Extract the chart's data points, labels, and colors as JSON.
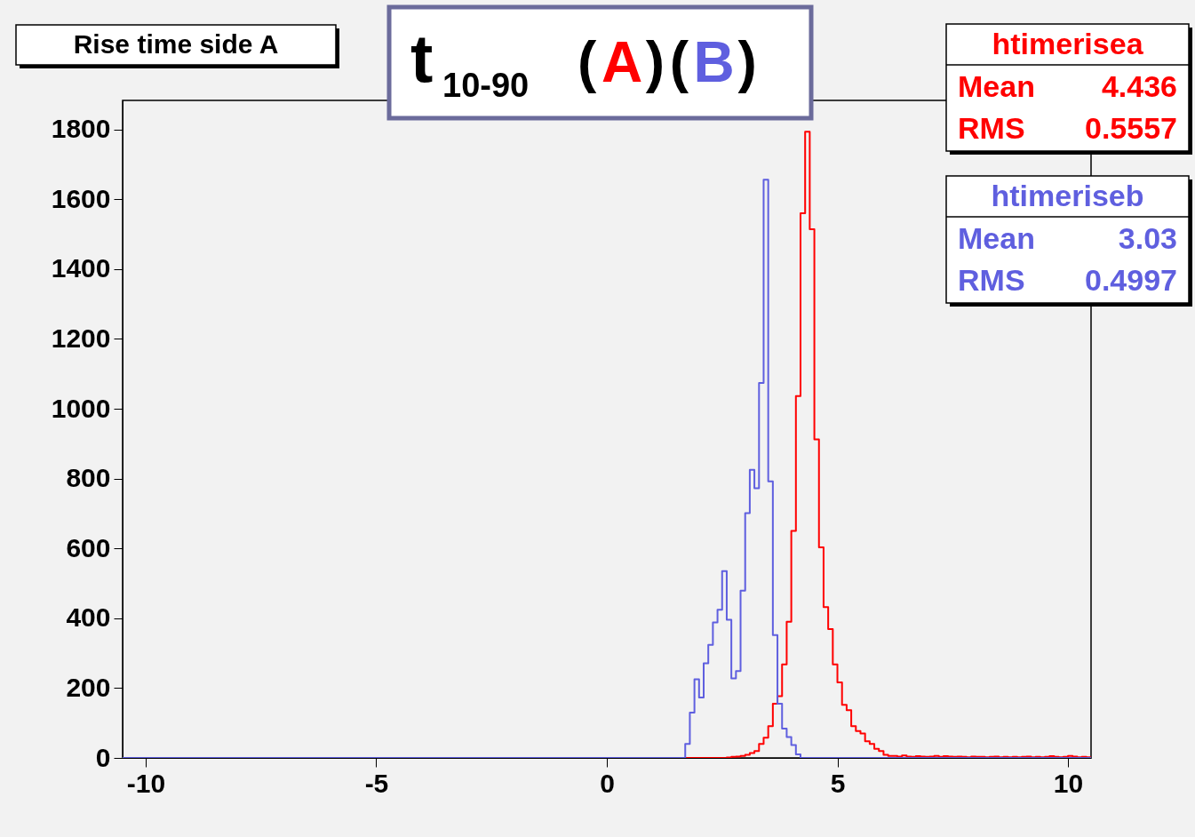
{
  "chart_data": {
    "type": "histogram",
    "title": "Rise time side A",
    "annotations": [
      "t$_{10-90}$ (A)(B)",
      "Mean 4.436",
      "RMS 0.5557",
      "Mean 3.03",
      "RMS 0.4997"
    ],
    "bins": [
      -10.5,
      -10.4,
      -10.3,
      -10.2,
      -10.1,
      -10,
      -9.9,
      -9.8,
      -9.7,
      -9.6,
      -9.5,
      -9.4,
      -9.3,
      -9.2,
      -9.1,
      -9,
      -8.9,
      -8.8,
      -8.7,
      -8.6,
      -8.5,
      -8.4,
      -8.3,
      -8.2,
      -8.1,
      -8,
      -7.9,
      -7.8,
      -7.7,
      -7.6,
      -7.5,
      -7.4,
      -7.3,
      -7.2,
      -7.1,
      -7,
      -6.9,
      -6.8,
      -6.7,
      -6.6,
      -6.5,
      -6.4,
      -6.3,
      -6.2,
      -6.1,
      -6,
      -5.9,
      -5.8,
      -5.7,
      -5.6,
      -5.5,
      -5.4,
      -5.3,
      -5.2,
      -5.1,
      -5,
      -4.9,
      -4.8,
      -4.7,
      -4.6,
      -4.5,
      -4.4,
      -4.3,
      -4.2,
      -4.1,
      -4,
      -3.9,
      -3.8,
      -3.7,
      -3.6,
      -3.5,
      -3.4,
      -3.3,
      -3.2,
      -3.1,
      -3,
      -2.9,
      -2.8,
      -2.7,
      -2.6,
      -2.5,
      -2.4,
      -2.3,
      -2.2,
      -2.1,
      -2,
      -1.9,
      -1.8,
      -1.7,
      -1.6,
      -1.5,
      -1.4,
      -1.3,
      -1.2,
      -1.1,
      -1,
      -0.9,
      -0.8,
      -0.7,
      -0.6,
      -0.5,
      -0.4,
      -0.3,
      -0.2,
      -0.1,
      0,
      0.1,
      0.2,
      0.3,
      0.4,
      0.5,
      0.6,
      0.7,
      0.8,
      0.9,
      1,
      1.1,
      1.2,
      1.3,
      1.4,
      1.5,
      1.6,
      1.7,
      1.8,
      1.9,
      2,
      2.1,
      2.2,
      2.3,
      2.4,
      2.5,
      2.6,
      2.7,
      2.8,
      2.9,
      3,
      3.1,
      3.2,
      3.3,
      3.4,
      3.5,
      3.6,
      3.7,
      3.8,
      3.9,
      4,
      4.1,
      4.2,
      4.3,
      4.4,
      4.5,
      4.6,
      4.7,
      4.8,
      4.9,
      5,
      5.1,
      5.2,
      5.3,
      5.4,
      5.5,
      5.6,
      5.7,
      5.8,
      5.9,
      6,
      6.1,
      6.2,
      6.3,
      6.4,
      6.5,
      6.6,
      6.7,
      6.8,
      6.9,
      7,
      7.1,
      7.2,
      7.3,
      7.4,
      7.5,
      7.6,
      7.7,
      7.8,
      7.9,
      8,
      8.1,
      8.2,
      8.3,
      8.4,
      8.5,
      8.6,
      8.7,
      8.8,
      8.9,
      9,
      9.1,
      9.2,
      9.3,
      9.4,
      9.5,
      9.6,
      9.7,
      9.8,
      9.9,
      10,
      10.1,
      10.2,
      10.3,
      10.4,
      10.5
    ],
    "series": [
      {
        "name": "htimerisea",
        "color": "#ff0000",
        "values": [
          0,
          0,
          0,
          0,
          0,
          0,
          0,
          0,
          0,
          0,
          0,
          0,
          0,
          0,
          0,
          0,
          0,
          0,
          0,
          0,
          0,
          0,
          0,
          0,
          0,
          0,
          0,
          0,
          0,
          0,
          0,
          0,
          0,
          0,
          0,
          0,
          0,
          0,
          0,
          0,
          0,
          0,
          0,
          0,
          0,
          0,
          0,
          0,
          0,
          0,
          0,
          0,
          0,
          0,
          0,
          0,
          0,
          0,
          0,
          0,
          0,
          0,
          0,
          0,
          0,
          0,
          0,
          0,
          0,
          0,
          0,
          0,
          0,
          0,
          0,
          0,
          0,
          0,
          0,
          0,
          0,
          0,
          0,
          0,
          0,
          0,
          0,
          0,
          0,
          0,
          0,
          0,
          0,
          0,
          0,
          0,
          0,
          0,
          0,
          0,
          0,
          0,
          0,
          0,
          0,
          0,
          0,
          0,
          0,
          0,
          0,
          0,
          0,
          0,
          0,
          0,
          0,
          0,
          0,
          0,
          0,
          0,
          0,
          0,
          0,
          0,
          0,
          0,
          0,
          0,
          0,
          1,
          3,
          4,
          6,
          9,
          14,
          20,
          40,
          58,
          91,
          155,
          177,
          268,
          390,
          650,
          1036,
          1560,
          1793,
          1514,
          912,
          603,
          432,
          369,
          268,
          216,
          152,
          137,
          91,
          77,
          70,
          48,
          40,
          26,
          20,
          9,
          6,
          6,
          4,
          7,
          4,
          3,
          5,
          4,
          3,
          4,
          6,
          3,
          5,
          4,
          3,
          4,
          3,
          2,
          4,
          3,
          3,
          2,
          3,
          4,
          2,
          3,
          2,
          3,
          2,
          3,
          4,
          2,
          3,
          2,
          3,
          5,
          3,
          2,
          3,
          6,
          4,
          2,
          3,
          2
        ]
      },
      {
        "name": "htimeriseb",
        "color": "#5f5fdf",
        "values": [
          0,
          0,
          0,
          0,
          0,
          0,
          0,
          0,
          0,
          0,
          0,
          0,
          0,
          0,
          0,
          0,
          0,
          0,
          0,
          0,
          0,
          0,
          0,
          0,
          0,
          0,
          0,
          0,
          0,
          0,
          0,
          0,
          0,
          0,
          0,
          0,
          0,
          0,
          0,
          0,
          0,
          0,
          0,
          0,
          0,
          0,
          0,
          0,
          0,
          0,
          0,
          0,
          0,
          0,
          0,
          0,
          0,
          0,
          0,
          0,
          0,
          0,
          0,
          0,
          0,
          0,
          0,
          0,
          0,
          0,
          0,
          0,
          0,
          0,
          0,
          0,
          0,
          0,
          0,
          0,
          0,
          0,
          0,
          0,
          0,
          0,
          0,
          0,
          0,
          0,
          0,
          0,
          0,
          0,
          0,
          0,
          0,
          0,
          0,
          0,
          0,
          0,
          0,
          0,
          0,
          0,
          0,
          0,
          0,
          0,
          0,
          0,
          0,
          0,
          0,
          0,
          0,
          0,
          0,
          0,
          0,
          0,
          40,
          130,
          225,
          173,
          271,
          324,
          388,
          424,
          535,
          396,
          228,
          249,
          479,
          701,
          825,
          772,
          1074,
          1656,
          792,
          352,
          155,
          84,
          60,
          37,
          10,
          0,
          0,
          0,
          0,
          0,
          0,
          0,
          0,
          0,
          0,
          0,
          0,
          0,
          0,
          0,
          0,
          0,
          0,
          0,
          0,
          0,
          0,
          0,
          0,
          0,
          0,
          0,
          0,
          0,
          0,
          0,
          0,
          0,
          0,
          0,
          0,
          0,
          0,
          0,
          0,
          0,
          0,
          0,
          0,
          0,
          0,
          0,
          0,
          0,
          0,
          0,
          0,
          0,
          0,
          0,
          0,
          0,
          0,
          0,
          0,
          0,
          0,
          0
        ]
      }
    ],
    "xlim": [
      -10.5,
      10.5
    ],
    "xticks": [
      -10,
      -5,
      0,
      5,
      10
    ],
    "ylim": [
      0,
      1883
    ],
    "yticks": [
      0,
      200,
      400,
      600,
      800,
      1000,
      1200,
      1400,
      1600,
      1800
    ],
    "grid": false,
    "legend": "top right"
  }
}
